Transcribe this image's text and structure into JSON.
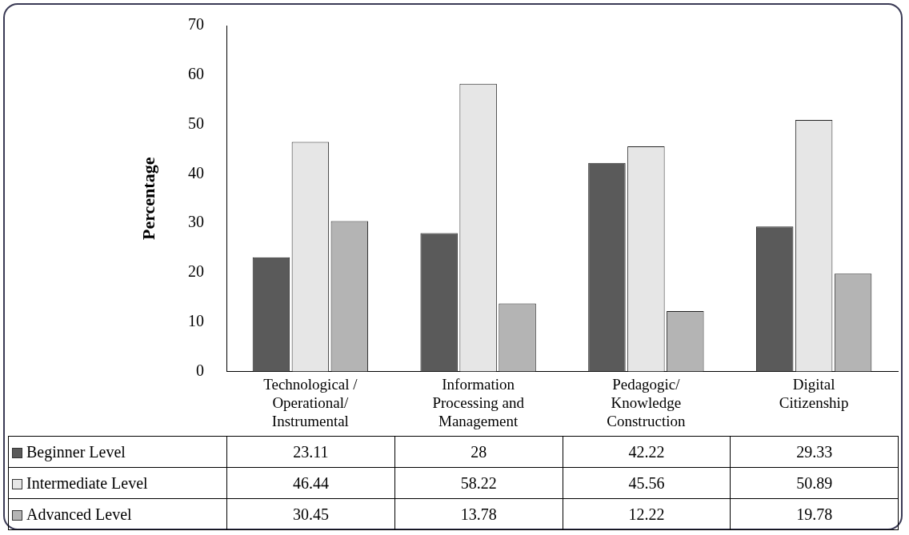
{
  "chart_data": {
    "type": "bar",
    "ylabel": "Percentage",
    "categories": [
      "Technological / Operational/ Instrumental",
      "Information Processing and Management",
      "Pedagogic/ Knowledge Construction",
      "Digital Citizenship"
    ],
    "series": [
      {
        "name": "Beginner Level",
        "color": "#5a5a5a",
        "values": [
          23.11,
          28,
          42.22,
          29.33
        ]
      },
      {
        "name": "Intermediate Level",
        "color": "#e6e6e6",
        "values": [
          46.44,
          58.22,
          45.56,
          50.89
        ]
      },
      {
        "name": "Advanced Level",
        "color": "#b4b4b4",
        "values": [
          30.45,
          13.78,
          12.22,
          19.78
        ]
      }
    ],
    "ylim": [
      0,
      70
    ],
    "yticks": [
      0,
      10,
      20,
      30,
      40,
      50,
      60,
      70
    ],
    "grid": false,
    "legend": "bottom",
    "data_labels": true
  }
}
